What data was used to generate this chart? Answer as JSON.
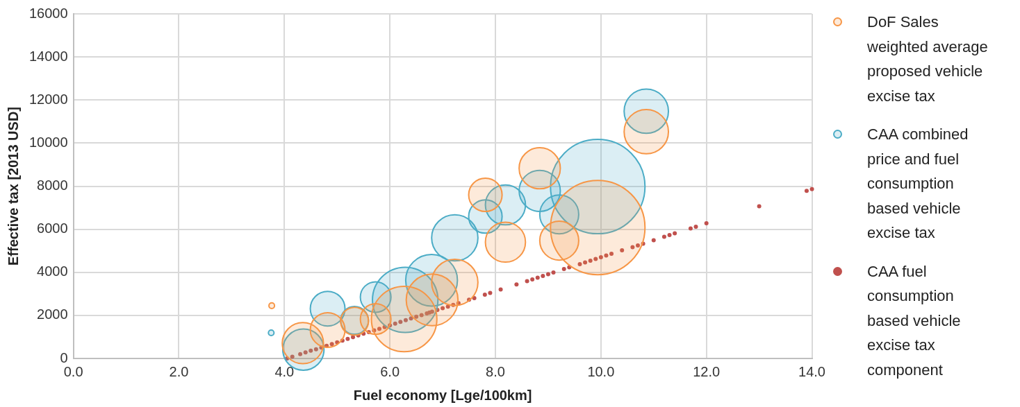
{
  "chart_data": {
    "type": "bubble",
    "xlabel": "Fuel economy [Lge/100km]",
    "ylabel": "Effective tax [2013 USD]",
    "xlim": [
      0,
      14
    ],
    "xticks": [
      {
        "value": 0,
        "label": "0.0"
      },
      {
        "value": 2,
        "label": "2.0"
      },
      {
        "value": 4,
        "label": "4.0"
      },
      {
        "value": 6,
        "label": "6.0"
      },
      {
        "value": 8,
        "label": "8.0"
      },
      {
        "value": 10,
        "label": "10.0"
      },
      {
        "value": 12,
        "label": "12.0"
      },
      {
        "value": 14,
        "label": "14.0"
      }
    ],
    "ylim": [
      0,
      16000
    ],
    "yticks": [
      0,
      2000,
      4000,
      6000,
      8000,
      10000,
      12000,
      14000,
      16000
    ],
    "grid": true,
    "legend": "right",
    "marker": "circle",
    "series": [
      {
        "name": "DoF Sales weighted average proposed vehicle excise tax",
        "type": "bubble",
        "color": "#f79646",
        "x": [
          3.76,
          4.35,
          4.82,
          5.33,
          5.73,
          6.27,
          6.8,
          7.23,
          7.81,
          8.19,
          8.84,
          9.21,
          9.94,
          10.86
        ],
        "values": [
          2450,
          710,
          1320,
          1730,
          1830,
          1830,
          2720,
          3530,
          7600,
          5400,
          8830,
          5470,
          6080,
          10530
        ],
        "sizes": [
          0.0035,
          0.19,
          0.135,
          0.087,
          0.105,
          0.48,
          0.3,
          0.24,
          0.125,
          0.18,
          0.19,
          0.17,
          1,
          0.22
        ]
      },
      {
        "name": "CAA combined price and fuel consumption based vehicle excise tax",
        "type": "bubble",
        "color": "#4bacc6",
        "x": [
          3.75,
          4.36,
          4.82,
          5.33,
          5.73,
          6.29,
          6.79,
          7.23,
          7.81,
          8.19,
          8.84,
          9.21,
          9.94,
          10.86
        ],
        "values": [
          1190,
          410,
          2310,
          1770,
          2850,
          2720,
          3630,
          5600,
          6590,
          7130,
          7780,
          6690,
          7980,
          11480
        ],
        "sizes": [
          0.0035,
          0.19,
          0.135,
          0.087,
          0.105,
          0.48,
          0.3,
          0.24,
          0.125,
          0.18,
          0.19,
          0.17,
          1,
          0.22
        ]
      },
      {
        "name": "CAA fuel consumption based vehicle excise tax component",
        "type": "scatter",
        "color": "#c0504d",
        "x": [
          4.05,
          4.15,
          4.3,
          4.4,
          4.5,
          4.6,
          4.7,
          4.8,
          4.9,
          5.0,
          5.1,
          5.2,
          5.3,
          5.4,
          5.5,
          5.6,
          5.7,
          5.8,
          5.9,
          6.0,
          6.1,
          6.2,
          6.3,
          6.4,
          6.5,
          6.6,
          6.7,
          6.75,
          6.8,
          6.9,
          7.0,
          7.1,
          7.2,
          7.3,
          7.5,
          7.6,
          7.8,
          7.9,
          8.1,
          8.4,
          8.6,
          8.7,
          8.8,
          8.9,
          9.0,
          9.1,
          9.3,
          9.4,
          9.6,
          9.7,
          9.8,
          9.9,
          10.0,
          10.1,
          10.2,
          10.4,
          10.6,
          10.7,
          10.8,
          11.0,
          11.2,
          11.3,
          11.4,
          11.7,
          11.8,
          12.0,
          13.0,
          13.9,
          14.0
        ],
        "values": [
          0,
          80,
          200,
          280,
          360,
          430,
          510,
          590,
          670,
          750,
          830,
          910,
          990,
          1070,
          1150,
          1220,
          1300,
          1380,
          1460,
          1540,
          1620,
          1700,
          1780,
          1860,
          1940,
          2010,
          2090,
          2130,
          2170,
          2250,
          2330,
          2410,
          2490,
          2570,
          2730,
          2800,
          2960,
          3040,
          3200,
          3440,
          3590,
          3670,
          3750,
          3830,
          3910,
          3990,
          4150,
          4230,
          4380,
          4460,
          4540,
          4620,
          4700,
          4780,
          4860,
          5020,
          5170,
          5250,
          5330,
          5490,
          5650,
          5730,
          5810,
          6040,
          6120,
          6280,
          7070,
          7780,
          7860
        ]
      }
    ]
  }
}
